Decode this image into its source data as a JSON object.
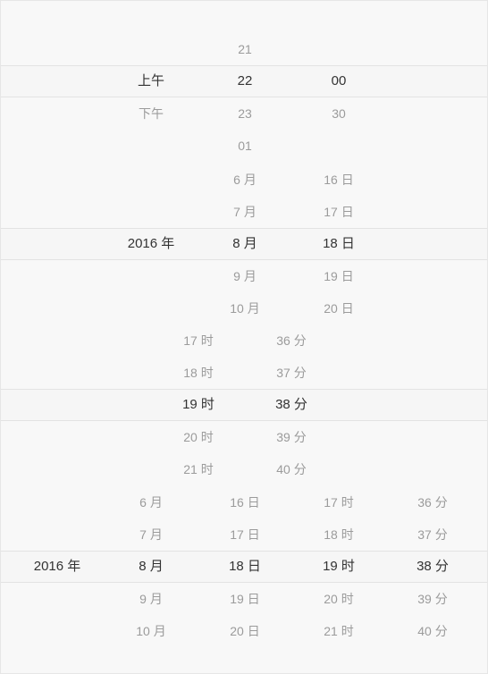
{
  "ampm_picker": {
    "ampm": {
      "above": "",
      "selected": "上午",
      "below1": "下午"
    },
    "hour": {
      "above2": "21",
      "selected": "22",
      "below1": "23",
      "below2": "01"
    },
    "minute": {
      "selected": "00",
      "below1": "30"
    }
  },
  "date_picker": {
    "year": {
      "selected": "2016 年"
    },
    "month": {
      "above2": "6 月",
      "above1": "7 月",
      "selected": "8 月",
      "below1": "9 月",
      "below2": "10 月"
    },
    "day": {
      "above2": "16 日",
      "above1": "17 日",
      "selected": "18 日",
      "below1": "19 日",
      "below2": "20 日"
    }
  },
  "time_picker": {
    "hour": {
      "above2": "17 时",
      "above1": "18 时",
      "selected": "19 时",
      "below1": "20 时",
      "below2": "21 时"
    },
    "minute": {
      "above2": "36 分",
      "above1": "37 分",
      "selected": "38 分",
      "below1": "39 分",
      "below2": "40 分"
    }
  },
  "datetime_picker": {
    "year": {
      "selected": "2016 年"
    },
    "month": {
      "above2": "6 月",
      "above1": "7 月",
      "selected": "8 月",
      "below1": "9 月",
      "below2": "10 月"
    },
    "day": {
      "above2": "16 日",
      "above1": "17 日",
      "selected": "18 日",
      "below1": "19 日",
      "below2": "20 日"
    },
    "hour": {
      "above2": "17 时",
      "above1": "18 时",
      "selected": "19 时",
      "below1": "20 时",
      "below2": "21 时"
    },
    "minute": {
      "above2": "36 分",
      "above1": "37 分",
      "selected": "38 分",
      "below1": "39 分",
      "below2": "40 分"
    }
  }
}
